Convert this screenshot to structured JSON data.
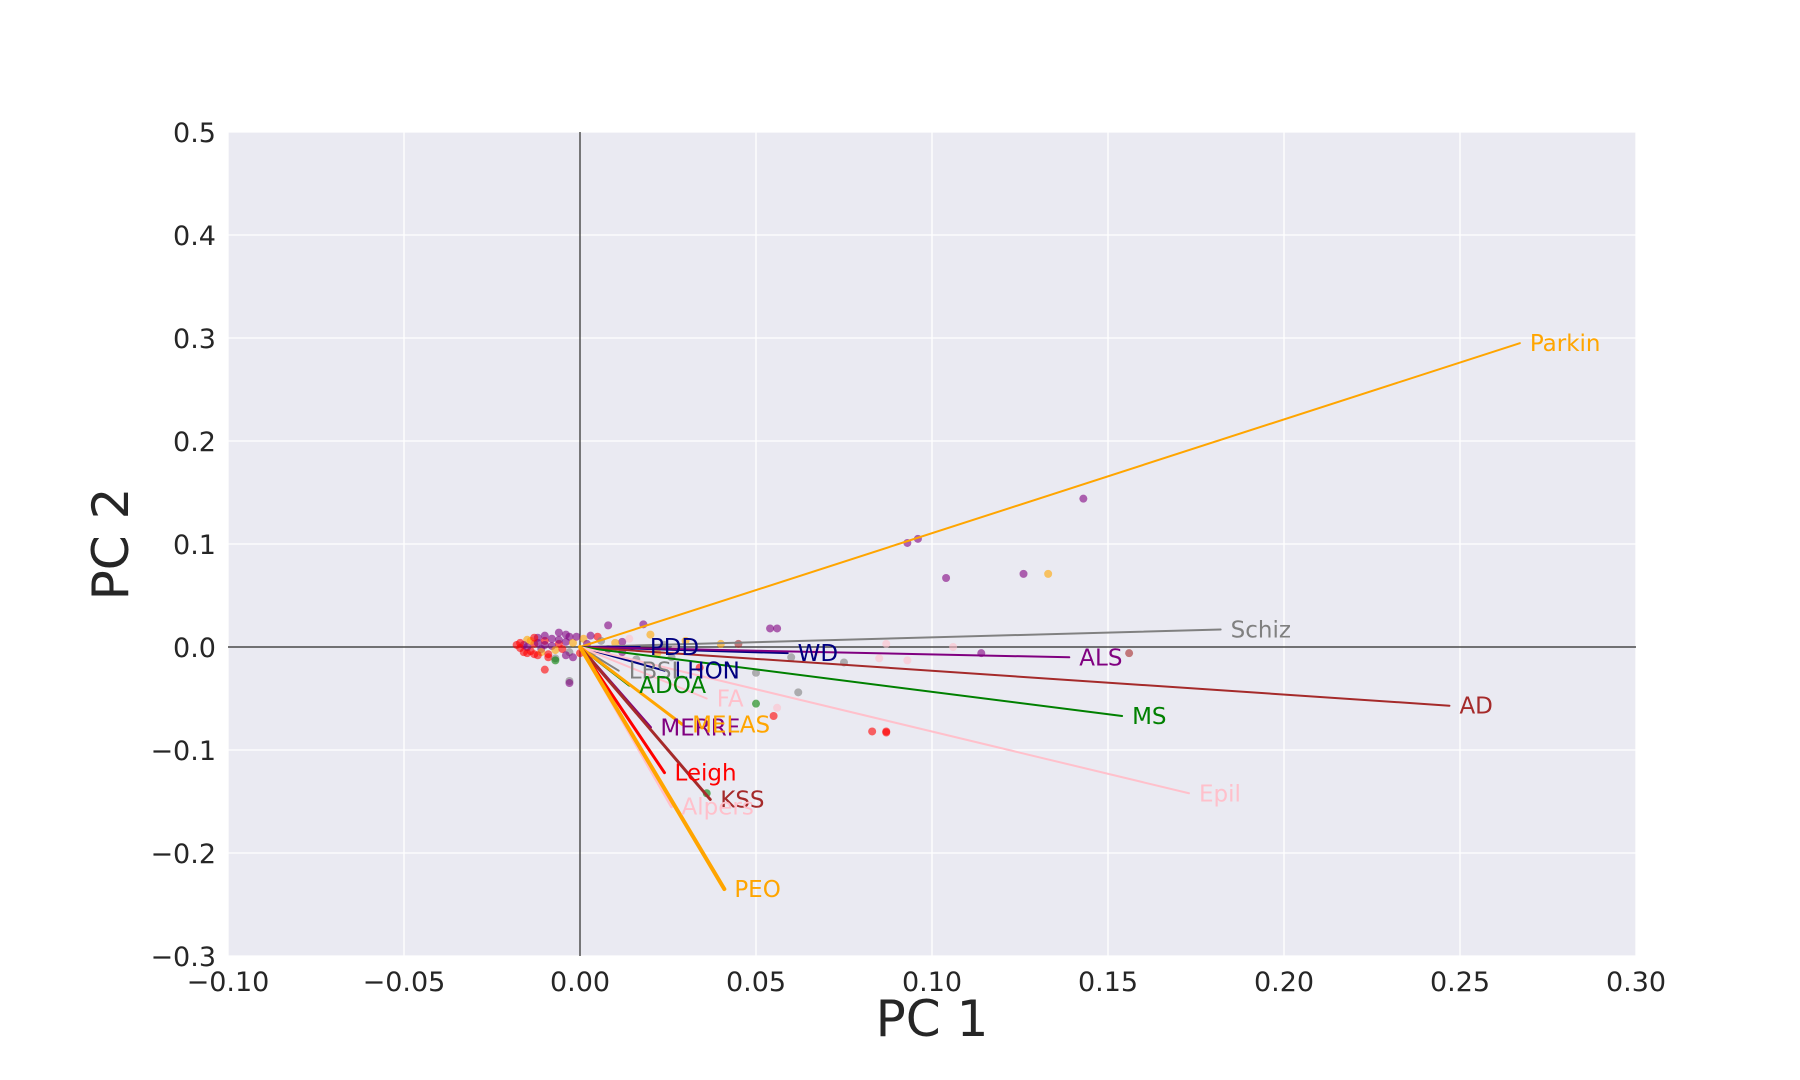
{
  "chart_data": {
    "type": "scatter",
    "title": "",
    "xlabel": "PC 1",
    "ylabel": "PC 2",
    "xlim": [
      -0.1,
      0.3
    ],
    "ylim": [
      -0.3,
      0.5
    ],
    "grid": true,
    "x_ticks": [
      {
        "value": -0.1,
        "label": "−0.10"
      },
      {
        "value": -0.05,
        "label": "−0.05"
      },
      {
        "value": 0.0,
        "label": "0.00"
      },
      {
        "value": 0.05,
        "label": "0.05"
      },
      {
        "value": 0.1,
        "label": "0.10"
      },
      {
        "value": 0.15,
        "label": "0.15"
      },
      {
        "value": 0.2,
        "label": "0.20"
      },
      {
        "value": 0.25,
        "label": "0.25"
      },
      {
        "value": 0.3,
        "label": "0.30"
      }
    ],
    "y_ticks": [
      {
        "value": -0.3,
        "label": "−0.3"
      },
      {
        "value": -0.2,
        "label": "−0.2"
      },
      {
        "value": -0.1,
        "label": "−0.1"
      },
      {
        "value": 0.0,
        "label": "0.0"
      },
      {
        "value": 0.1,
        "label": "0.1"
      },
      {
        "value": 0.2,
        "label": "0.2"
      },
      {
        "value": 0.3,
        "label": "0.3"
      },
      {
        "value": 0.4,
        "label": "0.4"
      },
      {
        "value": 0.5,
        "label": "0.5"
      }
    ],
    "loadings": [
      {
        "label": "Parkin",
        "x": 0.267,
        "y": 0.295,
        "color": "#ffa500",
        "width": 2
      },
      {
        "label": "Schiz",
        "x": 0.182,
        "y": 0.017,
        "color": "#808080",
        "width": 2
      },
      {
        "label": "PDD",
        "x": 0.017,
        "y": 0.0,
        "color": "#000080",
        "width": 2
      },
      {
        "label": "WD",
        "x": 0.059,
        "y": -0.006,
        "color": "#000080",
        "width": 2
      },
      {
        "label": "ALS",
        "x": 0.139,
        "y": -0.01,
        "color": "#800080",
        "width": 2
      },
      {
        "label": "AD",
        "x": 0.247,
        "y": -0.057,
        "color": "#a52a2a",
        "width": 2
      },
      {
        "label": "LHON",
        "x": 0.024,
        "y": -0.023,
        "color": "#000080",
        "width": 2
      },
      {
        "label": "LBSL",
        "x": 0.011,
        "y": -0.023,
        "color": "#808080",
        "width": 2
      },
      {
        "label": "ADOA",
        "x": 0.014,
        "y": -0.037,
        "color": "#008000",
        "width": 3
      },
      {
        "label": "MS",
        "x": 0.154,
        "y": -0.067,
        "color": "#008000",
        "width": 2
      },
      {
        "label": "FA",
        "x": 0.036,
        "y": -0.05,
        "color": "#ffc0cb",
        "width": 2
      },
      {
        "label": "Epil",
        "x": 0.173,
        "y": -0.142,
        "color": "#ffc0cb",
        "width": 2
      },
      {
        "label": "MERRF",
        "x": 0.02,
        "y": -0.078,
        "color": "#800080",
        "width": 3
      },
      {
        "label": "MELAS",
        "x": 0.029,
        "y": -0.075,
        "color": "#ffa500",
        "width": 3
      },
      {
        "label": "Leigh",
        "x": 0.024,
        "y": -0.122,
        "color": "#ff0000",
        "width": 3
      },
      {
        "label": "KSS",
        "x": 0.037,
        "y": -0.148,
        "color": "#a52a2a",
        "width": 3
      },
      {
        "label": "Alpers",
        "x": 0.026,
        "y": -0.155,
        "color": "#ffc0cb",
        "width": 3
      },
      {
        "label": "PEO",
        "x": 0.041,
        "y": -0.235,
        "color": "#ffa500",
        "width": 4
      }
    ],
    "points": [
      {
        "x": 0.143,
        "y": 0.144,
        "color": "#800080"
      },
      {
        "x": 0.093,
        "y": 0.101,
        "color": "#800080"
      },
      {
        "x": 0.096,
        "y": 0.105,
        "color": "#800080"
      },
      {
        "x": 0.104,
        "y": 0.067,
        "color": "#800080"
      },
      {
        "x": 0.126,
        "y": 0.071,
        "color": "#800080"
      },
      {
        "x": 0.133,
        "y": 0.071,
        "color": "#ffa500"
      },
      {
        "x": 0.054,
        "y": 0.018,
        "color": "#800080"
      },
      {
        "x": 0.056,
        "y": 0.018,
        "color": "#800080"
      },
      {
        "x": 0.018,
        "y": 0.022,
        "color": "#800080"
      },
      {
        "x": 0.008,
        "y": 0.021,
        "color": "#800080"
      },
      {
        "x": 0.114,
        "y": -0.006,
        "color": "#800080"
      },
      {
        "x": 0.156,
        "y": -0.006,
        "color": "#a52a2a"
      },
      {
        "x": 0.106,
        "y": 0.0,
        "color": "#ffc0cb"
      },
      {
        "x": 0.087,
        "y": 0.003,
        "color": "#ffc0cb"
      },
      {
        "x": 0.085,
        "y": -0.011,
        "color": "#ffc0cb"
      },
      {
        "x": 0.093,
        "y": -0.013,
        "color": "#ffc0cb"
      },
      {
        "x": 0.075,
        "y": -0.015,
        "color": "#808080"
      },
      {
        "x": 0.067,
        "y": -0.005,
        "color": "#ffc0cb"
      },
      {
        "x": 0.06,
        "y": -0.01,
        "color": "#808080"
      },
      {
        "x": 0.045,
        "y": 0.003,
        "color": "#a52a2a"
      },
      {
        "x": 0.04,
        "y": 0.003,
        "color": "#ffa500"
      },
      {
        "x": 0.062,
        "y": -0.044,
        "color": "#808080"
      },
      {
        "x": 0.05,
        "y": -0.025,
        "color": "#808080"
      },
      {
        "x": 0.05,
        "y": -0.055,
        "color": "#008000"
      },
      {
        "x": 0.055,
        "y": -0.067,
        "color": "#ff0000"
      },
      {
        "x": 0.056,
        "y": -0.059,
        "color": "#ffc0cb"
      },
      {
        "x": 0.083,
        "y": -0.082,
        "color": "#ff0000"
      },
      {
        "x": 0.087,
        "y": -0.082,
        "color": "#ff0000"
      },
      {
        "x": 0.087,
        "y": -0.083,
        "color": "#ff0000"
      },
      {
        "x": 0.036,
        "y": -0.142,
        "color": "#008000"
      },
      {
        "x": 0.034,
        "y": -0.02,
        "color": "#ff0000"
      },
      {
        "x": 0.03,
        "y": 0.006,
        "color": "#ffa500"
      },
      {
        "x": 0.026,
        "y": -0.01,
        "color": "#808080"
      },
      {
        "x": 0.02,
        "y": 0.012,
        "color": "#ffa500"
      },
      {
        "x": 0.012,
        "y": 0.005,
        "color": "#800080"
      },
      {
        "x": 0.005,
        "y": 0.01,
        "color": "#ff0000"
      },
      {
        "x": 0.001,
        "y": 0.008,
        "color": "#ffa500"
      },
      {
        "x": -0.003,
        "y": 0.01,
        "color": "#800080"
      },
      {
        "x": -0.004,
        "y": 0.005,
        "color": "#800080"
      },
      {
        "x": -0.006,
        "y": 0.003,
        "color": "#ff0000"
      },
      {
        "x": -0.008,
        "y": 0.001,
        "color": "#800080"
      },
      {
        "x": -0.01,
        "y": 0.006,
        "color": "#ff0000"
      },
      {
        "x": -0.011,
        "y": -0.002,
        "color": "#800080"
      },
      {
        "x": -0.012,
        "y": 0.009,
        "color": "#800080"
      },
      {
        "x": -0.013,
        "y": 0.003,
        "color": "#ff0000"
      },
      {
        "x": -0.014,
        "y": -0.004,
        "color": "#ff0000"
      },
      {
        "x": -0.015,
        "y": 0.007,
        "color": "#ffa500"
      },
      {
        "x": -0.016,
        "y": 0.002,
        "color": "#800080"
      },
      {
        "x": -0.017,
        "y": -0.001,
        "color": "#ff0000"
      },
      {
        "x": -0.018,
        "y": 0.002,
        "color": "#ff0000"
      },
      {
        "x": -0.017,
        "y": 0.004,
        "color": "#ff0000"
      },
      {
        "x": -0.016,
        "y": -0.005,
        "color": "#ff0000"
      },
      {
        "x": -0.015,
        "y": 0.0,
        "color": "#800080"
      },
      {
        "x": -0.014,
        "y": 0.006,
        "color": "#ffa500"
      },
      {
        "x": -0.013,
        "y": -0.007,
        "color": "#ff0000"
      },
      {
        "x": -0.012,
        "y": 0.004,
        "color": "#800080"
      },
      {
        "x": -0.011,
        "y": -0.005,
        "color": "#ffa500"
      },
      {
        "x": -0.01,
        "y": 0.002,
        "color": "#800080"
      },
      {
        "x": -0.009,
        "y": -0.007,
        "color": "#ff0000"
      },
      {
        "x": -0.008,
        "y": 0.008,
        "color": "#800080"
      },
      {
        "x": -0.007,
        "y": -0.003,
        "color": "#ffa500"
      },
      {
        "x": -0.006,
        "y": 0.007,
        "color": "#800080"
      },
      {
        "x": -0.005,
        "y": -0.002,
        "color": "#ff0000"
      },
      {
        "x": -0.004,
        "y": 0.012,
        "color": "#800080"
      },
      {
        "x": -0.003,
        "y": -0.005,
        "color": "#808080"
      },
      {
        "x": -0.002,
        "y": 0.004,
        "color": "#ffa500"
      },
      {
        "x": -0.001,
        "y": 0.01,
        "color": "#800080"
      },
      {
        "x": 0.0,
        "y": -0.006,
        "color": "#ff0000"
      },
      {
        "x": 0.002,
        "y": 0.003,
        "color": "#800080"
      },
      {
        "x": 0.003,
        "y": 0.011,
        "color": "#800080"
      },
      {
        "x": 0.004,
        "y": -0.004,
        "color": "#ffa500"
      },
      {
        "x": 0.006,
        "y": 0.006,
        "color": "#808080"
      },
      {
        "x": 0.008,
        "y": -0.002,
        "color": "#800080"
      },
      {
        "x": 0.01,
        "y": 0.004,
        "color": "#ffa500"
      },
      {
        "x": -0.006,
        "y": 0.014,
        "color": "#800080"
      },
      {
        "x": -0.01,
        "y": 0.011,
        "color": "#800080"
      },
      {
        "x": -0.013,
        "y": 0.009,
        "color": "#ff0000"
      },
      {
        "x": -0.009,
        "y": -0.01,
        "color": "#ff0000"
      },
      {
        "x": -0.012,
        "y": -0.008,
        "color": "#ff0000"
      },
      {
        "x": -0.015,
        "y": -0.006,
        "color": "#ff0000"
      },
      {
        "x": -0.007,
        "y": -0.011,
        "color": "#808080"
      },
      {
        "x": -0.004,
        "y": -0.008,
        "color": "#800080"
      },
      {
        "x": -0.002,
        "y": -0.01,
        "color": "#800080"
      },
      {
        "x": -0.01,
        "y": -0.022,
        "color": "#ff0000"
      },
      {
        "x": -0.003,
        "y": -0.033,
        "color": "#808080"
      },
      {
        "x": -0.003,
        "y": -0.035,
        "color": "#800080"
      },
      {
        "x": -0.007,
        "y": -0.013,
        "color": "#008000"
      },
      {
        "x": 0.012,
        "y": -0.005,
        "color": "#800080"
      },
      {
        "x": 0.016,
        "y": -0.012,
        "color": "#808080"
      },
      {
        "x": 0.022,
        "y": -0.006,
        "color": "#ffa500"
      },
      {
        "x": 0.027,
        "y": -0.002,
        "color": "#ffc0cb"
      },
      {
        "x": 0.014,
        "y": 0.008,
        "color": "#ffc0cb"
      },
      {
        "x": 0.024,
        "y": 0.002,
        "color": "#808080"
      }
    ]
  }
}
